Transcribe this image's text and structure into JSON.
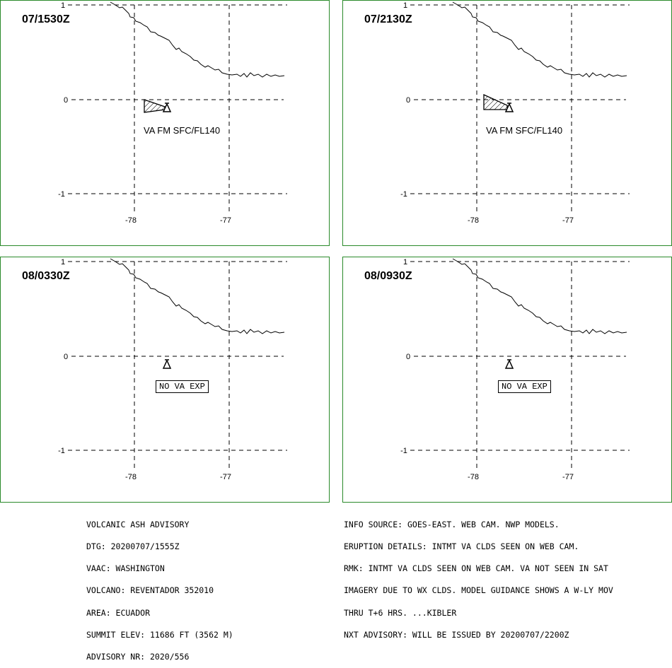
{
  "panels": [
    {
      "time": "07/1530Z",
      "label": "VA FM SFC/FL140",
      "label_style": "text",
      "ash_area": true
    },
    {
      "time": "07/2130Z",
      "label": "VA FM SFC/FL140",
      "label_style": "text",
      "ash_area": true
    },
    {
      "time": "08/0330Z",
      "label": "NO VA EXP",
      "label_style": "boxed",
      "ash_area": false
    },
    {
      "time": "08/0930Z",
      "label": "NO VA EXP",
      "label_style": "boxed",
      "ash_area": false
    }
  ],
  "axes": {
    "lat_labels": [
      "1",
      "0",
      "-1"
    ],
    "lon_labels": [
      "-78",
      "-77"
    ]
  },
  "advisory_left": [
    "VOLCANIC ASH ADVISORY",
    "DTG: 20200707/1555Z",
    "VAAC: WASHINGTON",
    "VOLCANO: REVENTADOR 352010",
    "AREA: ECUADOR",
    "SUMMIT ELEV: 11686 FT (3562 M)",
    "ADVISORY NR: 2020/556"
  ],
  "advisory_right": [
    "INFO SOURCE: GOES-EAST. WEB CAM. NWP MODELS.",
    "ERUPTION DETAILS: INTMT VA CLDS SEEN ON WEB CAM.",
    "RMK: INTMT VA CLDS SEEN ON WEB CAM. VA NOT SEEN IN SAT",
    "IMAGERY DUE TO WX CLDS. MODEL GUIDANCE SHOWS A W-LY MOV",
    "THRU T+6 HRS. ...KIBLER",
    "NXT ADVISORY: WILL BE ISSUED BY 20200707/2200Z"
  ],
  "colors": {
    "panel_border": "#2a8a2a",
    "lines": "#000000"
  },
  "icons": {
    "volcano": "volcano-triangle-icon",
    "ash_area": "hatched-polygon"
  }
}
